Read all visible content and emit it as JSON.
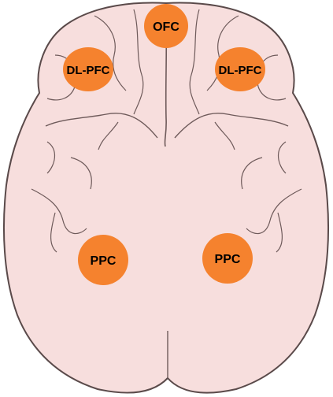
{
  "colors": {
    "brain_fill": "#f7dedd",
    "brain_outline": "#5a4a4a",
    "fold": "#6e5a5a",
    "marker": "#f5822e",
    "label": "#000000"
  },
  "regions": [
    {
      "key": "ofc",
      "label": "OFC"
    },
    {
      "key": "dlpfc-left",
      "label": "DL-PFC"
    },
    {
      "key": "dlpfc-right",
      "label": "DL-PFC"
    },
    {
      "key": "ppc-left",
      "label": "PPC"
    },
    {
      "key": "ppc-right",
      "label": "PPC"
    }
  ]
}
